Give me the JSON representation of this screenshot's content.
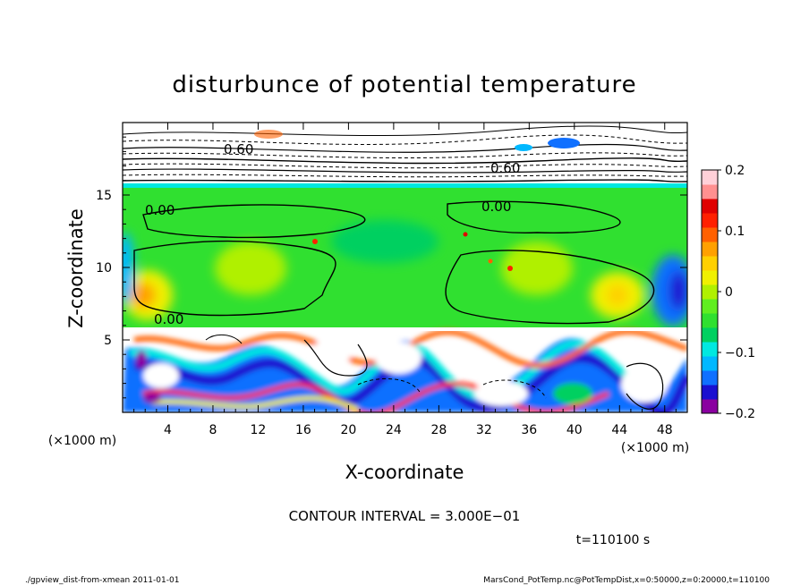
{
  "chart_data": {
    "type": "heatmap",
    "title": "disturbunce of potential temperature",
    "xlabel": "X-coordinate",
    "ylabel": "Z-coordinate",
    "x_unit": "(×1000 m)",
    "y_unit": "(×1000 m)",
    "xlim": [
      0,
      50
    ],
    "ylim": [
      0,
      20
    ],
    "x_ticks": [
      4,
      8,
      12,
      16,
      20,
      24,
      28,
      32,
      36,
      40,
      44,
      48
    ],
    "x_tick_labels": [
      "4",
      "8",
      "12",
      "16",
      "20",
      "24",
      "28",
      "32",
      "36",
      "40",
      "44",
      "48"
    ],
    "y_ticks": [
      5,
      10,
      15
    ],
    "y_tick_labels": [
      "5",
      "10",
      "15"
    ],
    "colorbar": {
      "range": [
        -0.2,
        0.2
      ],
      "ticks": [
        0.2,
        0.1,
        0,
        -0.1,
        -0.2
      ],
      "tick_labels": [
        "0.2",
        "0.1",
        "0",
        "−0.1",
        "−0.2"
      ],
      "colors": [
        "#8a00a0",
        "#1a10d0",
        "#1070ff",
        "#00b8ff",
        "#00e8e0",
        "#00d060",
        "#30e030",
        "#60ee20",
        "#b0f000",
        "#f0f000",
        "#ffd000",
        "#ffa000",
        "#ff6000",
        "#ff2000",
        "#e00000",
        "#ff9090",
        "#ffd0d8"
      ]
    },
    "contour_interval_text": "CONTOUR INTERVAL = 3.000E−01",
    "contour_labels": [
      "0.00",
      "0.00",
      "0.00",
      "0.60",
      "0.60"
    ],
    "time_text": "t=110100 s",
    "footer_left": "./gpview_dist-from-xmean  2011-01-01",
    "footer_right": "MarsCond_PotTemp.nc@PotTempDist,x=0:50000,z=0:20000,t=110100"
  }
}
